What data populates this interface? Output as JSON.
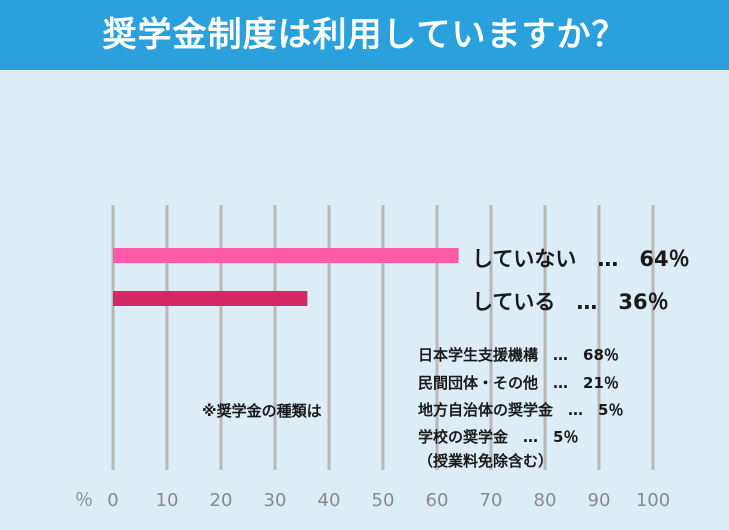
{
  "title": "奨学金制度は利用していますか？",
  "colors": {
    "title_bar": "#2aa1dc",
    "background": "#dcedf6",
    "grid": "#b8b8b8",
    "not_using": "#ff5ca8",
    "using": "#d42866"
  },
  "chart_data": {
    "type": "bar",
    "orientation": "horizontal",
    "categories": [
      "していない",
      "している"
    ],
    "values": [
      64,
      36
    ],
    "bar_labels": [
      "していない　…　64％",
      "している　…　36％"
    ],
    "xlim": [
      0,
      100
    ],
    "x_unit": "％",
    "x_ticks": [
      "0",
      "10",
      "20",
      "30",
      "40",
      "50",
      "60",
      "70",
      "80",
      "90",
      "100"
    ],
    "grid": true
  },
  "breakdown": {
    "heading": "※奨学金の種類は",
    "items": [
      "日本学生支援機構　…　68％",
      "民間団体・その他　…　21％",
      "地方自治体の奨学金　…　5％",
      "学校の奨学金　…　5％",
      "（授業料免除含む）"
    ]
  }
}
